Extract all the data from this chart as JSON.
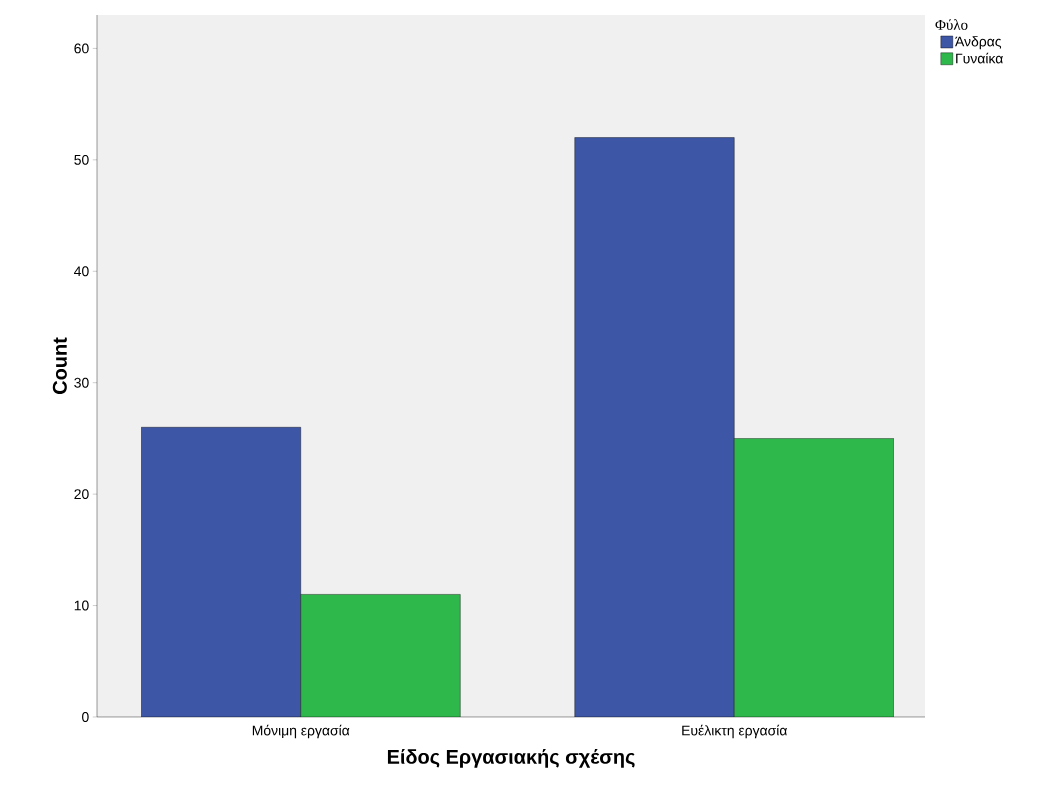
{
  "chart_data": {
    "type": "bar",
    "xlabel": "Είδος Εργασιακής σχέσης",
    "ylabel": "Count",
    "legend_title": "Φύλο",
    "legend": "top right",
    "categories": [
      "Μόνιμη εργασία",
      "Ευέλικτη εργασία"
    ],
    "series": [
      {
        "name": "Άνδρας",
        "color": "#3d56a6",
        "values": [
          26,
          52
        ]
      },
      {
        "name": "Γυναίκα",
        "color": "#2eb84b",
        "values": [
          11,
          25
        ]
      }
    ],
    "ylim": [
      0,
      63
    ],
    "yticks": [
      0,
      10,
      20,
      30,
      40,
      50,
      60
    ]
  }
}
